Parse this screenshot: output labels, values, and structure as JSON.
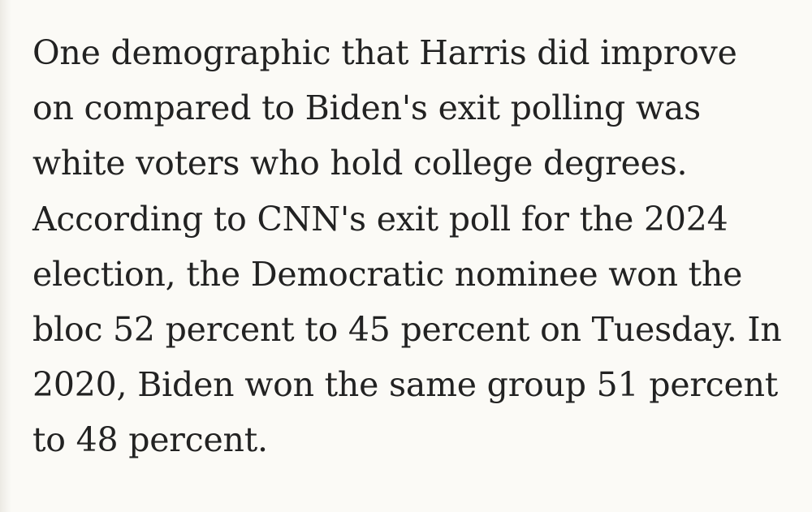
{
  "article": {
    "paragraph_lines": [
      "One demographic that Harris did improve",
      "on compared to Biden's exit polling was",
      "white voters who hold college degrees.",
      "According to CNN's exit poll for the 2024",
      "election, the Democratic nominee won the",
      "bloc 52 percent to 45 percent on Tuesday. In",
      "2020, Biden won the same group 51 percent",
      "to 48 percent."
    ]
  },
  "colors": {
    "background": "#fbfaf6",
    "text": "#222222"
  }
}
